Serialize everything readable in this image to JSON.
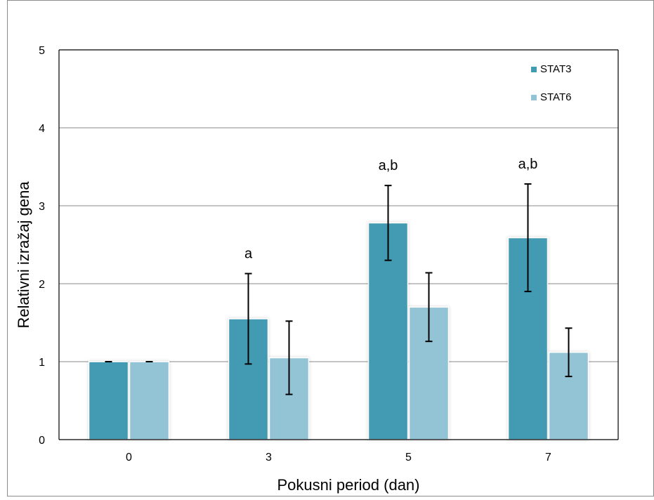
{
  "chart_data": {
    "type": "bar",
    "title": "",
    "xlabel": "Pokusni period (dan)",
    "ylabel": "Relativni izražaj gena",
    "categories": [
      "0",
      "3",
      "5",
      "7"
    ],
    "ylim": [
      0,
      5
    ],
    "yticks": [
      "0",
      "1",
      "2",
      "3",
      "4",
      "5"
    ],
    "grid": true,
    "legend_position": "top-right",
    "series": [
      {
        "name": "STAT3",
        "color": "#439BB2",
        "values": [
          1.0,
          1.55,
          2.78,
          2.59
        ],
        "error": [
          0.0,
          0.58,
          0.48,
          0.69
        ]
      },
      {
        "name": "STAT6",
        "color": "#93C4D5",
        "values": [
          1.0,
          1.05,
          1.7,
          1.12
        ],
        "error": [
          0.0,
          0.47,
          0.44,
          0.31
        ]
      }
    ],
    "annotations": [
      "",
      "a",
      "a,b",
      "a,b"
    ]
  }
}
